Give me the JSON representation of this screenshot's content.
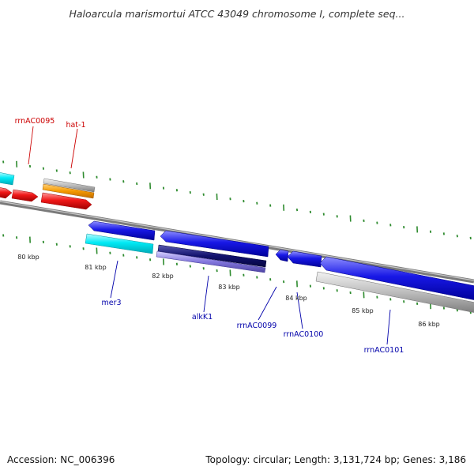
{
  "title": "Haloarcula marismortui ATCC 43049 chromosome I, complete seq...",
  "footer": {
    "accession": "Accession: NC_006396",
    "summary": "Topology: circular; Length: 3,131,724 bp; Genes: 3,186"
  },
  "colors": {
    "backbone": "#8c8c8c",
    "tick": "#2e8b2e",
    "forward_label": "#cc0000",
    "reverse_label": "#0000aa",
    "cyan": "#00e6f0",
    "orange": "#f59a00",
    "gray": "#b8b8b8",
    "red": "#f01010",
    "blue": "#1818e0",
    "navy": "#10106e",
    "purple": "#7b6fd6"
  },
  "scale_labels": [
    "80 kbp",
    "81 kbp",
    "82 kbp",
    "83 kbp",
    "84 kbp",
    "85 kbp",
    "86 kbp"
  ],
  "gene_labels": {
    "forward": [
      "rrnAC0095",
      "hat-1"
    ],
    "reverse": [
      "mer3",
      "alkK1",
      "rrnAC0099",
      "rrnAC0100",
      "rrnAC0101"
    ]
  }
}
